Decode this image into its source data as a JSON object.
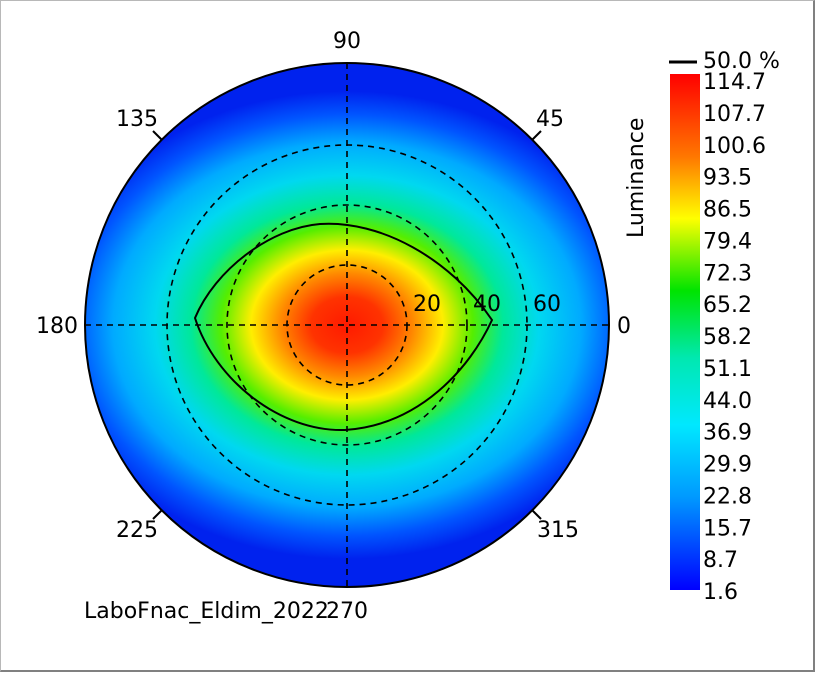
{
  "chart_data": {
    "type": "heatmap",
    "subtype": "polar-conoscope",
    "colorbar_title": "Luminance",
    "colorbar_ticks": [
      "114.7",
      "107.7",
      "100.6",
      "93.5",
      "86.5",
      "79.4",
      "72.3",
      "65.2",
      "58.2",
      "51.1",
      "44.0",
      "36.9",
      "29.9",
      "22.8",
      "15.7",
      "8.7",
      "1.6"
    ],
    "colorbar_range": [
      1.6,
      114.7
    ],
    "contour_legend": "50.0 %",
    "angle_labels": [
      "90",
      "45",
      "0",
      "315",
      "270",
      "225",
      "180",
      "135"
    ],
    "radial_labels": [
      "20",
      "40",
      "60"
    ],
    "radial_range": [
      0,
      80
    ],
    "peak_luminance": 114.7,
    "contour_50pct": {
      "level": 57.35,
      "horizontal_half_width_deg": 50,
      "vertical_half_height_deg": 36
    },
    "caption": "LaboFnac_Eldim_2022",
    "caption_overlap": "270",
    "colors": {
      "max": "#ff0000",
      "high": "#ff9900",
      "mid_high": "#ffff00",
      "mid": "#00dd00",
      "mid_low": "#00ffff",
      "low": "#0088ff",
      "min": "#0000ff"
    }
  }
}
